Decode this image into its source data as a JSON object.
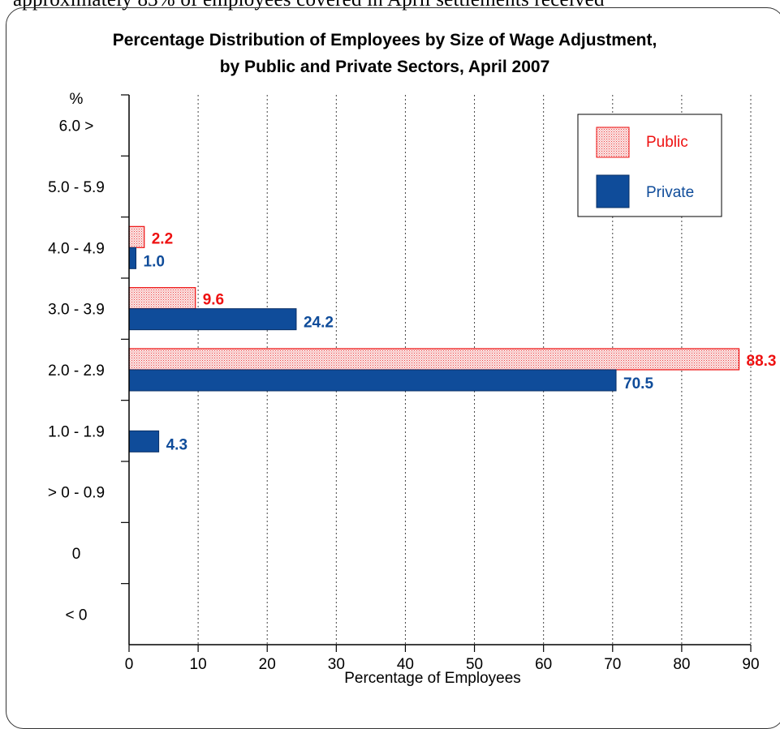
{
  "page": {
    "top_text": "approximately 83% of employees covered in April settlements received"
  },
  "colors": {
    "public": "#ee1111",
    "public_fill": "#f6c9c9",
    "private": "#0f4c9a",
    "axis": "#000000",
    "grid": "#444444"
  },
  "chart_data": {
    "type": "bar",
    "orientation": "horizontal",
    "title": "Percentage Distribution of Employees by Size of Wage Adjustment, by Public and Private Sectors, April 2007",
    "title_lines": [
      "Percentage Distribution of Employees by Size of Wage Adjustment,",
      "by Public and Private Sectors, April 2007"
    ],
    "xlabel": "Percentage of Employees",
    "ylabel": "%",
    "xlim": [
      0,
      90
    ],
    "x_ticks": [
      0,
      10,
      20,
      30,
      40,
      50,
      60,
      70,
      80,
      90
    ],
    "x_grid": true,
    "categories": [
      "6.0 >",
      "5.0 - 5.9",
      "4.0 - 4.9",
      "3.0 - 3.9",
      "2.0 - 2.9",
      "1.0 - 1.9",
      "> 0 - 0.9",
      "0",
      "< 0"
    ],
    "series": [
      {
        "name": "Public",
        "color": "#ee1111",
        "pattern": "dotted-hatch",
        "values": [
          null,
          null,
          2.2,
          9.6,
          88.3,
          null,
          null,
          null,
          null
        ],
        "labels": [
          "",
          "",
          "2.2",
          "9.6",
          "88.3",
          "",
          "",
          "",
          ""
        ]
      },
      {
        "name": "Private",
        "color": "#0f4c9a",
        "pattern": "solid",
        "values": [
          null,
          null,
          1.0,
          24.2,
          70.5,
          4.3,
          null,
          null,
          null
        ],
        "labels": [
          "",
          "",
          "1.0",
          "24.2",
          "70.5",
          "4.3",
          "",
          "",
          ""
        ]
      }
    ],
    "legend": {
      "position": "top-right",
      "entries": [
        {
          "label": "Public",
          "color": "#ee1111",
          "pattern": "dotted-hatch"
        },
        {
          "label": "Private",
          "color": "#0f4c9a",
          "pattern": "solid"
        }
      ]
    }
  }
}
